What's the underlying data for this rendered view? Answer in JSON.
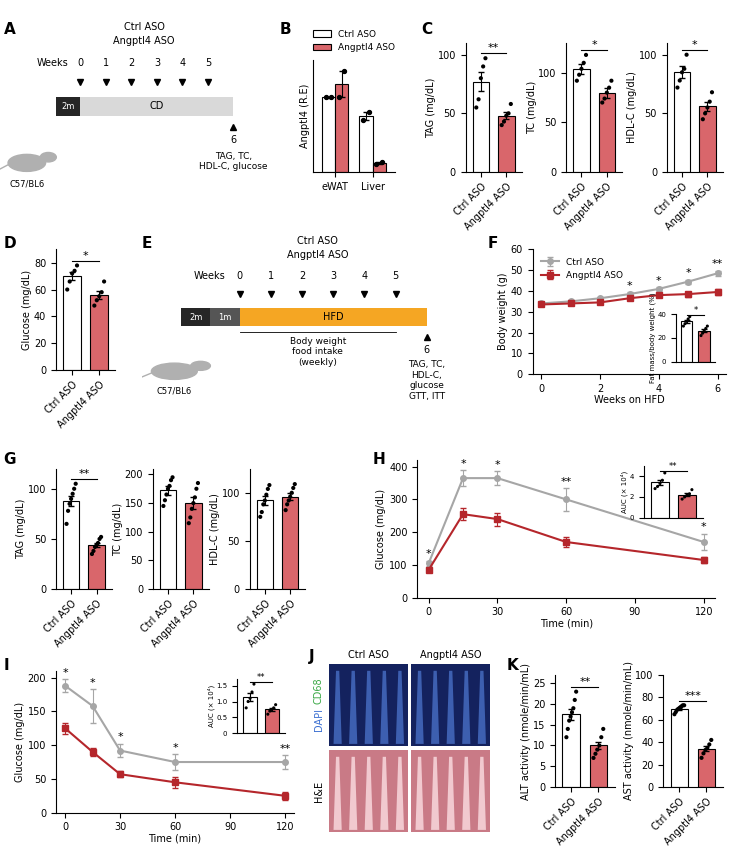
{
  "chart_data": [
    {
      "type": "diagram",
      "panel": "A",
      "groups": [
        "Ctrl ASO",
        "Angptl4 ASO"
      ],
      "weeks_label": "Weeks",
      "weeks": [
        0,
        1,
        2,
        3,
        4,
        5
      ],
      "stages": [
        "2m",
        "CD"
      ],
      "colors": [
        "#262626",
        "#d9d9d9"
      ],
      "endpoint_week": 6,
      "endpoint_text": "TAG, TC,\nHDL-C, glucose",
      "strain": "C57/BL6"
    },
    {
      "type": "grouped_bar",
      "panel": "B",
      "ylabel": "Angptl4 (R.E)",
      "categories": [
        "eWAT",
        "Liver"
      ],
      "series": [
        {
          "name": "Ctrl ASO",
          "color": "#ffffff",
          "values": [
            1.0,
            0.75
          ],
          "errors": [
            0.01,
            0.05
          ],
          "points": [
            [
              1.0,
              1.0
            ],
            [
              0.7,
              0.8
            ]
          ]
        },
        {
          "name": "Angptl4 ASO",
          "color": "#d9666b",
          "values": [
            1.18,
            0.12
          ],
          "errors": [
            0.17,
            0.01
          ],
          "points": [
            [
              1.0,
              1.35
            ],
            [
              0.11,
              0.13
            ]
          ]
        }
      ],
      "ylim": [
        0,
        1.5
      ],
      "tick_labels": "x",
      "legend": "top"
    },
    {
      "type": "bar",
      "panel": "C",
      "ylabel": "TAG (mg/dL)",
      "categories": [
        "Ctrl ASO",
        "Angptl4 ASO"
      ],
      "values": [
        77,
        48
      ],
      "errors": [
        8,
        3
      ],
      "points": [
        [
          55,
          62,
          80,
          90,
          97
        ],
        [
          40,
          43,
          48,
          50,
          58
        ]
      ],
      "colors": [
        "#ffffff",
        "#d9666b"
      ],
      "ylim": [
        0,
        110
      ],
      "yticks": [
        0,
        50,
        100
      ],
      "annotations": [
        {
          "text": "**"
        }
      ]
    },
    {
      "type": "bar",
      "ylabel": "TC (mg/dL)",
      "categories": [
        "Ctrl ASO",
        "Angptl4 ASO"
      ],
      "values": [
        104,
        80
      ],
      "errors": [
        5,
        5
      ],
      "points": [
        [
          92,
          98,
          104,
          110,
          118
        ],
        [
          70,
          74,
          80,
          85,
          92
        ]
      ],
      "colors": [
        "#ffffff",
        "#d9666b"
      ],
      "ylim": [
        0,
        130
      ],
      "yticks": [
        0,
        50,
        100
      ],
      "annotations": [
        {
          "text": "*"
        }
      ]
    },
    {
      "type": "bar",
      "ylabel": "HDL-C (mg/dL)",
      "categories": [
        "Ctrl ASO",
        "Angptl4 ASO"
      ],
      "values": [
        85,
        56
      ],
      "errors": [
        5,
        4
      ],
      "points": [
        [
          72,
          78,
          85,
          88,
          100
        ],
        [
          45,
          50,
          55,
          60,
          68
        ]
      ],
      "colors": [
        "#ffffff",
        "#d9666b"
      ],
      "ylim": [
        0,
        110
      ],
      "yticks": [
        0,
        50,
        100
      ],
      "annotations": [
        {
          "text": "*"
        }
      ]
    },
    {
      "type": "bar",
      "panel": "D",
      "ylabel": "Glucose (mg/dL)",
      "categories": [
        "Ctrl ASO",
        "Angptl4 ASO"
      ],
      "values": [
        70,
        56
      ],
      "errors": [
        3,
        3
      ],
      "points": [
        [
          60,
          66,
          72,
          74,
          78
        ],
        [
          48,
          52,
          55,
          58,
          66
        ]
      ],
      "colors": [
        "#ffffff",
        "#d9666b"
      ],
      "ylim": [
        0,
        90
      ],
      "yticks": [
        0,
        20,
        40,
        60,
        80
      ],
      "annotations": [
        {
          "text": "*"
        }
      ]
    },
    {
      "type": "diagram",
      "panel": "E",
      "groups": [
        "Ctrl ASO",
        "Angptl4 ASO"
      ],
      "weeks_label": "Weeks",
      "weeks": [
        0,
        1,
        2,
        3,
        4,
        5
      ],
      "stages": [
        "2m",
        "1m",
        "HFD"
      ],
      "colors": [
        "#262626",
        "#555555",
        "#f5a623"
      ],
      "endpoint_week": 6,
      "endpoint_text": "TAG, TC,\nHDL-C,\nglucose\nGTT, ITT",
      "weekly_text": "Body weight\nfood intake\n(weekly)",
      "strain": "C57/BL6"
    },
    {
      "type": "line",
      "panel": "F",
      "xlabel": "Weeks on HFD",
      "ylabel": "Body weight (g)",
      "x": [
        0,
        1,
        2,
        3,
        4,
        5,
        6
      ],
      "series": [
        {
          "name": "Ctrl ASO",
          "color": "#a6a6a6",
          "marker": "circle",
          "values": [
            34,
            35,
            36.5,
            38.5,
            41,
            44.5,
            48.5
          ],
          "errors": [
            0.5,
            0.6,
            0.7,
            0.8,
            0.9,
            1.0,
            1.2
          ]
        },
        {
          "name": "Angptl4 ASO",
          "color": "#b5262b",
          "marker": "square",
          "values": [
            33.5,
            34,
            34.5,
            36.5,
            38,
            38.5,
            39.5
          ],
          "errors": [
            0.6,
            0.6,
            0.7,
            0.8,
            1.0,
            1.2,
            1.5
          ]
        }
      ],
      "xlim": [
        -0.3,
        6.3
      ],
      "xticks": [
        0,
        2,
        4,
        6
      ],
      "ylim": [
        0,
        60
      ],
      "yticks": [
        0,
        10,
        20,
        30,
        40,
        50,
        60
      ],
      "legend": "upper left",
      "annotations": [
        {
          "x": 3,
          "text": "*"
        },
        {
          "x": 4,
          "text": "*"
        },
        {
          "x": 5,
          "text": "*"
        },
        {
          "x": 6,
          "text": "**"
        }
      ],
      "inset": {
        "type": "bar",
        "ylabel": "Fat mass/body weight (%)",
        "categories": [
          "Ctrl ASO",
          "Angptl4 ASO"
        ],
        "values": [
          34,
          26
        ],
        "errors": [
          1.4,
          1.4
        ],
        "points": [
          [
            30,
            32,
            34,
            36,
            38
          ],
          [
            22,
            24,
            26,
            28,
            30
          ]
        ],
        "colors": [
          "#ffffff",
          "#d9666b"
        ],
        "ylim": [
          0,
          40
        ],
        "yticks": [
          0,
          20,
          40
        ],
        "tick_labels": "y",
        "annotations": [
          {
            "text": "*"
          }
        ]
      }
    },
    {
      "type": "bar",
      "panel": "G",
      "ylabel": "TAG (mg/dL)",
      "categories": [
        "Ctrl ASO",
        "Angptl4 ASO"
      ],
      "values": [
        88,
        44
      ],
      "errors": [
        5,
        2
      ],
      "points": [
        [
          65,
          78,
          85,
          90,
          95,
          100,
          105
        ],
        [
          35,
          38,
          42,
          44,
          46,
          50,
          52
        ]
      ],
      "colors": [
        "#ffffff",
        "#d9666b"
      ],
      "ylim": [
        0,
        120
      ],
      "yticks": [
        0,
        50,
        100
      ],
      "annotations": [
        {
          "text": "**"
        }
      ]
    },
    {
      "type": "bar",
      "ylabel": "TC (mg/dL)",
      "categories": [
        "Ctrl ASO",
        "Angptl4 ASO"
      ],
      "values": [
        172,
        150
      ],
      "errors": [
        7,
        10
      ],
      "points": [
        [
          145,
          155,
          165,
          175,
          180,
          190,
          195
        ],
        [
          115,
          125,
          140,
          150,
          160,
          175,
          185
        ]
      ],
      "colors": [
        "#ffffff",
        "#d9666b"
      ],
      "ylim": [
        0,
        210
      ],
      "yticks": [
        0,
        50,
        100,
        150,
        200
      ]
    },
    {
      "type": "bar",
      "ylabel": "HDL-C (mg/dL)",
      "categories": [
        "Ctrl ASO",
        "Angptl4 ASO"
      ],
      "values": [
        92,
        96
      ],
      "errors": [
        5,
        4
      ],
      "points": [
        [
          75,
          80,
          88,
          92,
          98,
          104,
          108
        ],
        [
          82,
          88,
          92,
          96,
          100,
          105,
          109
        ]
      ],
      "colors": [
        "#ffffff",
        "#d9666b"
      ],
      "ylim": [
        0,
        125
      ],
      "yticks": [
        0,
        50,
        100
      ]
    },
    {
      "type": "line",
      "panel": "H",
      "xlabel": "Time (min)",
      "ylabel": "Glucose (mg/dL)",
      "x": [
        0,
        15,
        30,
        60,
        120
      ],
      "series": [
        {
          "name": "Ctrl ASO",
          "color": "#a6a6a6",
          "marker": "circle",
          "values": [
            105,
            365,
            365,
            300,
            170
          ],
          "errors": [
            8,
            25,
            22,
            35,
            25
          ]
        },
        {
          "name": "Angptl4 ASO",
          "color": "#b5262b",
          "marker": "square",
          "values": [
            85,
            255,
            240,
            170,
            115
          ],
          "errors": [
            6,
            18,
            20,
            15,
            10
          ]
        }
      ],
      "xlim": [
        -5,
        125
      ],
      "xticks": [
        0,
        30,
        60,
        90,
        120
      ],
      "ylim": [
        0,
        420
      ],
      "yticks": [
        0,
        100,
        200,
        300,
        400
      ],
      "annotations": [
        {
          "x": 0,
          "text": "*"
        },
        {
          "x": 15,
          "text": "*"
        },
        {
          "x": 30,
          "text": "*"
        },
        {
          "x": 60,
          "text": "**"
        },
        {
          "x": 120,
          "text": "*"
        }
      ],
      "inset": {
        "type": "bar",
        "ylabel": "AUC (× 10⁴)",
        "categories": [
          "Ctrl ASO",
          "Angptl4 ASO"
        ],
        "values": [
          3.4,
          2.2
        ],
        "errors": [
          0.25,
          0.15
        ],
        "points": [
          [
            2.8,
            3.0,
            3.3,
            3.6,
            4.3
          ],
          [
            1.8,
            2.0,
            2.2,
            2.3,
            2.7
          ]
        ],
        "colors": [
          "#ffffff",
          "#d9666b"
        ],
        "ylim": [
          0,
          5
        ],
        "yticks": [
          0,
          2,
          4
        ],
        "tick_labels": "y",
        "annotations": [
          {
            "text": "**"
          }
        ]
      }
    },
    {
      "type": "line",
      "panel": "I",
      "xlabel": "Time (min)",
      "ylabel": "Glucose (mg/dL)",
      "x": [
        0,
        15,
        30,
        60,
        120
      ],
      "series": [
        {
          "name": "Ctrl ASO",
          "color": "#a6a6a6",
          "marker": "circle",
          "values": [
            188,
            158,
            92,
            75,
            75
          ],
          "errors": [
            10,
            25,
            10,
            12,
            10
          ]
        },
        {
          "name": "Angptl4 ASO",
          "color": "#b5262b",
          "marker": "square",
          "values": [
            125,
            90,
            57,
            45,
            25
          ],
          "errors": [
            8,
            6,
            4,
            8,
            6
          ]
        }
      ],
      "xlim": [
        -5,
        125
      ],
      "xticks": [
        0,
        30,
        60,
        90,
        120
      ],
      "ylim": [
        0,
        210
      ],
      "yticks": [
        0,
        50,
        100,
        150,
        200
      ],
      "annotations": [
        {
          "x": 0,
          "text": "*"
        },
        {
          "x": 15,
          "text": "*"
        },
        {
          "x": 30,
          "text": "*"
        },
        {
          "x": 60,
          "text": "*"
        },
        {
          "x": 120,
          "text": "**"
        }
      ],
      "inset": {
        "type": "bar",
        "ylabel": "AUC (× 10⁴)",
        "categories": [
          "Ctrl ASO",
          "Angptl4 ASO"
        ],
        "values": [
          1.15,
          0.75
        ],
        "errors": [
          0.12,
          0.05
        ],
        "points": [
          [
            0.8,
            1.0,
            1.1,
            1.3,
            1.55
          ],
          [
            0.6,
            0.7,
            0.75,
            0.8,
            0.9
          ]
        ],
        "colors": [
          "#ffffff",
          "#d9666b"
        ],
        "ylim": [
          0,
          1.7
        ],
        "yticks": [
          0,
          0.5,
          1.0,
          1.5
        ],
        "tick_labels": "y",
        "annotations": [
          {
            "text": "**"
          }
        ]
      }
    },
    {
      "type": "image",
      "panel": "J",
      "columns": [
        "Ctrl ASO",
        "Angptl4 ASO"
      ],
      "rows": [
        {
          "parts": [
            "DAPI",
            "CD68"
          ],
          "colors": [
            "#3b6fd1",
            "#3aa845"
          ]
        },
        {
          "parts": [
            "H&E"
          ],
          "colors": [
            "#000000"
          ]
        }
      ],
      "tile_colors": [
        "#14225e",
        "#c97a86"
      ]
    },
    {
      "type": "bar",
      "panel": "K",
      "ylabel": "ALT activity (nmole/min/mL)",
      "categories": [
        "Ctrl ASO",
        "Angptl4 ASO"
      ],
      "values": [
        17.5,
        10
      ],
      "errors": [
        1.3,
        0.9
      ],
      "points": [
        [
          12,
          14,
          16,
          17,
          18,
          19,
          21,
          23
        ],
        [
          7,
          8,
          9,
          10,
          12,
          14
        ]
      ],
      "colors": [
        "#ffffff",
        "#d9666b"
      ],
      "ylim": [
        0,
        27
      ],
      "yticks": [
        0,
        5,
        10,
        15,
        20,
        25
      ],
      "annotations": [
        {
          "text": "**"
        }
      ]
    },
    {
      "type": "bar",
      "ylabel": "AST activity (nmole/min/mL)",
      "categories": [
        "Ctrl ASO",
        "Angptl4 ASO"
      ],
      "values": [
        70,
        34
      ],
      "errors": [
        1,
        2.3
      ],
      "points": [
        [
          65,
          67,
          69,
          70,
          71,
          72,
          73,
          73
        ],
        [
          26,
          30,
          33,
          35,
          38,
          42
        ]
      ],
      "colors": [
        "#ffffff",
        "#d9666b"
      ],
      "ylim": [
        0,
        100
      ],
      "yticks": [
        0,
        20,
        40,
        60,
        80,
        100
      ],
      "annotations": [
        {
          "text": "***"
        }
      ]
    }
  ]
}
